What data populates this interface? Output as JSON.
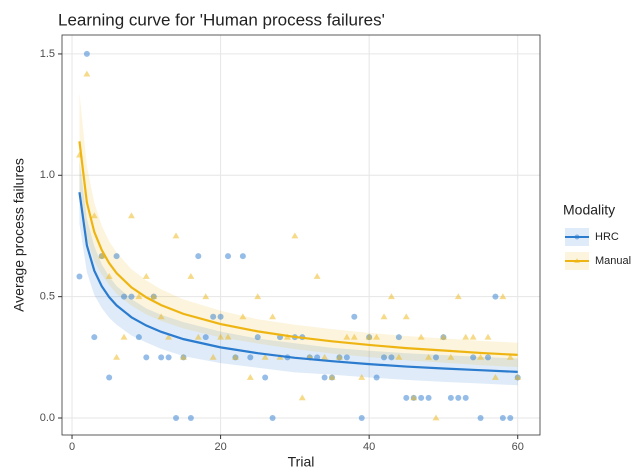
{
  "chart_data": {
    "type": "scatter",
    "title": "Learning curve for 'Human process failures'",
    "x_label": "Trial",
    "y_label": "Average process failures",
    "legend_title": "Modality",
    "legend_position": "right",
    "grid": true,
    "xlim": [
      -1.35,
      63
    ],
    "ylim": [
      -0.07,
      1.578
    ],
    "xticks": [
      0,
      20,
      40,
      60
    ],
    "yticks": [
      {
        "value": 0,
        "label": "0.0"
      },
      {
        "value": 0.5,
        "label": "0.5"
      },
      {
        "value": 1,
        "label": "1.0"
      },
      {
        "value": 1.5,
        "label": "1.5"
      }
    ],
    "series": [
      {
        "name": "HRC",
        "color": "#2b7bcf",
        "marker": "circle",
        "x": [
          1,
          2,
          3,
          4,
          5,
          6,
          7,
          8,
          9,
          10,
          11,
          12,
          13,
          14,
          15,
          16,
          17,
          18,
          19,
          20,
          21,
          22,
          23,
          24,
          25,
          26,
          27,
          28,
          29,
          30,
          31,
          32,
          33,
          34,
          35,
          36,
          37,
          38,
          39,
          40,
          41,
          42,
          43,
          44,
          45,
          46,
          47,
          48,
          49,
          50,
          51,
          52,
          53,
          54,
          55,
          56,
          57,
          58,
          59,
          60
        ],
        "values": [
          0.583,
          1.5,
          0.333,
          0.667,
          0.167,
          0.667,
          0.5,
          0.5,
          0.333,
          0.25,
          0.5,
          0.25,
          0.25,
          0,
          0.25,
          0,
          0.667,
          0.333,
          0.417,
          0.417,
          0.667,
          0.25,
          0.667,
          0.25,
          0.333,
          0.167,
          0,
          0.333,
          0.25,
          0.333,
          0.333,
          0.25,
          0.25,
          0.167,
          0.167,
          0.25,
          0.25,
          0.417,
          0,
          0.333,
          0.167,
          0.25,
          0.25,
          0.333,
          0.083,
          0.083,
          0.083,
          0.083,
          0.25,
          0.333,
          0.083,
          0.083,
          0.083,
          0.25,
          0,
          0.25,
          0.5,
          0,
          0,
          0.167
        ],
        "fit": {
          "x": [
            1,
            2,
            3,
            4,
            5,
            6,
            8,
            10,
            12,
            15,
            20,
            25,
            30,
            35,
            40,
            45,
            50,
            55,
            60
          ],
          "values": [
            0.93,
            0.711,
            0.607,
            0.543,
            0.498,
            0.464,
            0.415,
            0.381,
            0.355,
            0.325,
            0.291,
            0.267,
            0.248,
            0.234,
            0.222,
            0.212,
            0.204,
            0.197,
            0.19
          ],
          "lower": [
            0.8,
            0.601,
            0.507,
            0.453,
            0.413,
            0.384,
            0.34,
            0.311,
            0.285,
            0.255,
            0.226,
            0.207,
            0.188,
            0.179,
            0.167,
            0.157,
            0.149,
            0.142,
            0.135
          ],
          "upper": [
            1.06,
            0.821,
            0.707,
            0.633,
            0.583,
            0.544,
            0.49,
            0.451,
            0.425,
            0.395,
            0.356,
            0.327,
            0.308,
            0.289,
            0.277,
            0.267,
            0.259,
            0.252,
            0.245
          ]
        }
      },
      {
        "name": "Manual",
        "color": "#eeb512",
        "marker": "triangle",
        "x": [
          1,
          2,
          3,
          4,
          5,
          6,
          7,
          8,
          9,
          10,
          11,
          12,
          13,
          14,
          15,
          16,
          17,
          18,
          19,
          20,
          21,
          22,
          23,
          24,
          25,
          26,
          27,
          28,
          29,
          30,
          31,
          32,
          33,
          34,
          35,
          36,
          37,
          38,
          39,
          40,
          41,
          42,
          43,
          44,
          45,
          46,
          47,
          48,
          49,
          50,
          51,
          52,
          53,
          54,
          55,
          56,
          57,
          58,
          59,
          60
        ],
        "values": [
          1.083,
          1.417,
          0.833,
          0.667,
          0.583,
          0.25,
          0.333,
          0.833,
          0.5,
          0.583,
          0.5,
          0.417,
          0.333,
          0.75,
          0.25,
          0.583,
          0.333,
          0.5,
          0.25,
          0.333,
          0.333,
          0.25,
          0.417,
          0.167,
          0.5,
          0.25,
          0.417,
          0.25,
          0.333,
          0.75,
          0.083,
          0.25,
          0.583,
          0.25,
          0.167,
          0.25,
          0.333,
          0.333,
          0.167,
          0.333,
          0.333,
          0.417,
          0.5,
          0.25,
          0.417,
          0.083,
          0.333,
          0.25,
          0,
          0.333,
          0.25,
          0.5,
          0.333,
          0.333,
          0.25,
          0.333,
          0.167,
          0.5,
          0.25,
          0.167
        ],
        "fit": {
          "x": [
            1,
            2,
            3,
            4,
            5,
            6,
            8,
            10,
            12,
            15,
            20,
            25,
            30,
            35,
            40,
            45,
            50,
            55,
            60
          ],
          "values": [
            1.14,
            0.888,
            0.766,
            0.692,
            0.638,
            0.597,
            0.538,
            0.497,
            0.465,
            0.429,
            0.387,
            0.357,
            0.334,
            0.316,
            0.301,
            0.288,
            0.278,
            0.268,
            0.26
          ],
          "lower": [
            0.94,
            0.738,
            0.646,
            0.592,
            0.548,
            0.512,
            0.463,
            0.427,
            0.4,
            0.369,
            0.332,
            0.307,
            0.284,
            0.266,
            0.251,
            0.238,
            0.228,
            0.218,
            0.21
          ],
          "upper": [
            1.34,
            1.038,
            0.886,
            0.792,
            0.728,
            0.682,
            0.613,
            0.567,
            0.53,
            0.489,
            0.442,
            0.407,
            0.384,
            0.366,
            0.351,
            0.338,
            0.328,
            0.318,
            0.31
          ]
        }
      }
    ]
  }
}
